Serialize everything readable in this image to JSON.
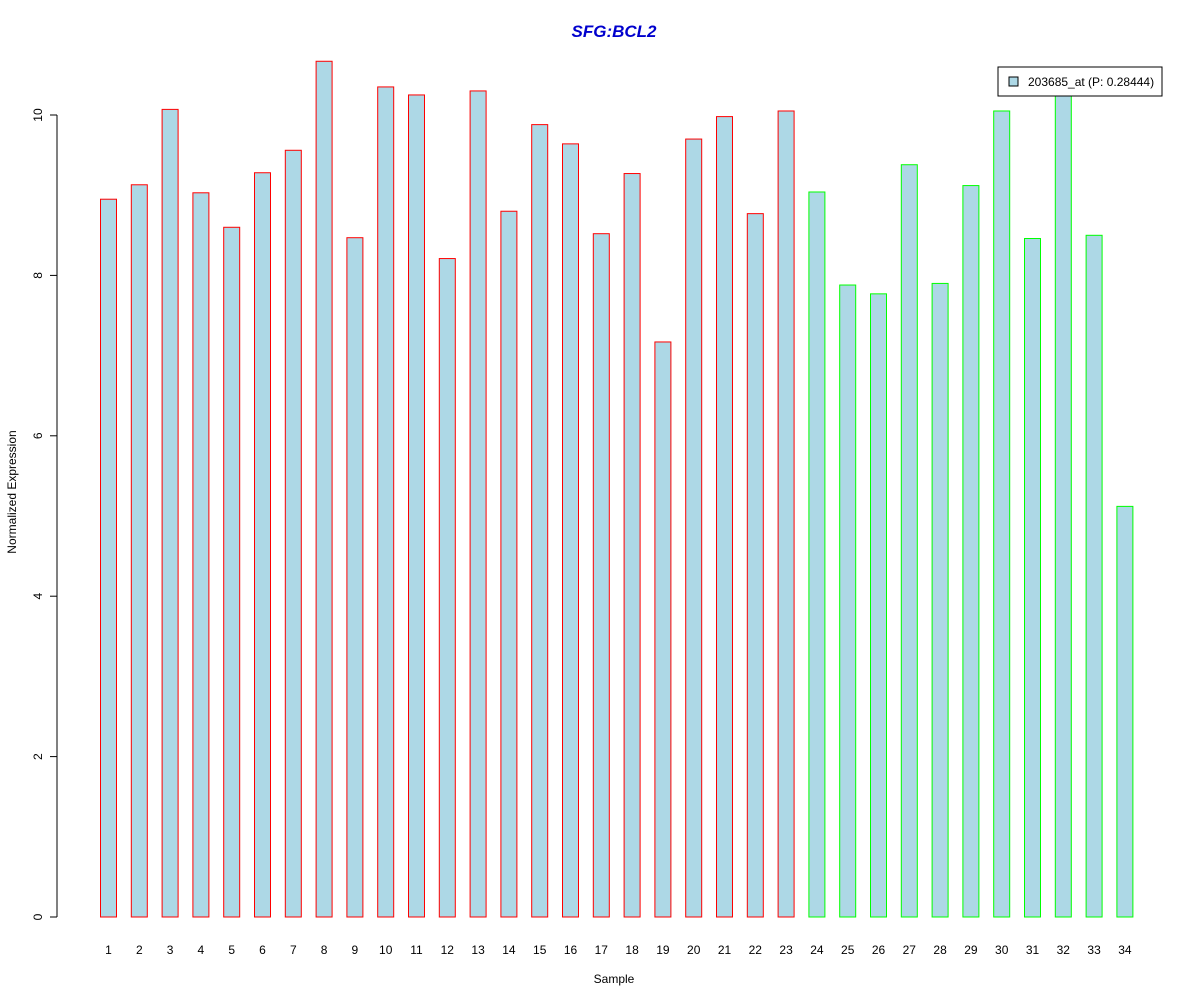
{
  "chart_data": {
    "type": "bar",
    "title": "SFG:BCL2",
    "xlabel": "Sample",
    "ylabel": "Normalized Expression",
    "categories": [
      "1",
      "2",
      "3",
      "4",
      "5",
      "6",
      "7",
      "8",
      "9",
      "10",
      "11",
      "12",
      "13",
      "14",
      "15",
      "16",
      "17",
      "18",
      "19",
      "20",
      "21",
      "22",
      "23",
      "24",
      "25",
      "26",
      "27",
      "28",
      "29",
      "30",
      "31",
      "32",
      "33",
      "34"
    ],
    "series": [
      {
        "name": "203685_at (P: 0.28444)",
        "values": [
          8.95,
          9.13,
          10.07,
          9.03,
          8.6,
          9.28,
          9.56,
          10.67,
          8.47,
          10.35,
          10.25,
          8.21,
          10.3,
          8.8,
          9.88,
          9.64,
          8.52,
          9.27,
          7.17,
          9.7,
          9.98,
          8.77,
          10.05,
          9.04,
          7.88,
          7.77,
          9.38,
          7.9,
          9.12,
          10.05,
          8.46,
          10.25,
          8.5,
          5.12
        ]
      }
    ],
    "groups": [
      {
        "from": 1,
        "to": 23,
        "border_color": "#ff0000"
      },
      {
        "from": 24,
        "to": 34,
        "border_color": "#00ff00"
      }
    ],
    "ylim": [
      0,
      11
    ],
    "yticks": [
      0,
      2,
      4,
      6,
      8,
      10
    ],
    "grid": false,
    "legend_placement": "top-right",
    "colors": {
      "bar_fill": "#add8e6",
      "title": "#0000cd"
    }
  }
}
